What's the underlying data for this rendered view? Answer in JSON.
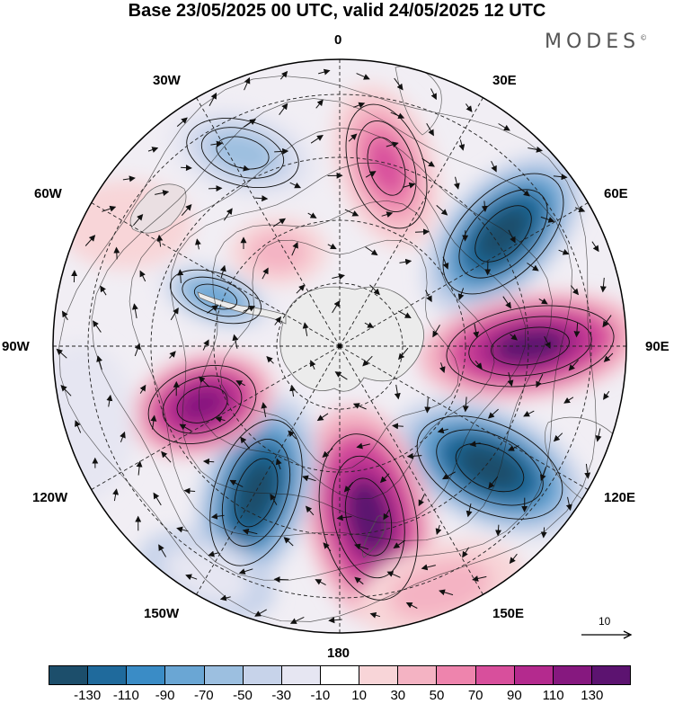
{
  "title": "Base 23/05/2025 00 UTC, valid 24/05/2025 12 UTC",
  "brand": "MODES",
  "brand_mark": "©",
  "longitude_labels": {
    "lon_0": "0",
    "lon_30e": "30E",
    "lon_60e": "60E",
    "lon_90e": "90E",
    "lon_120e": "120E",
    "lon_150e": "150E",
    "lon_180": "180",
    "lon_150w": "150W",
    "lon_120w": "120W",
    "lon_90w": "90W",
    "lon_60w": "60W",
    "lon_30w": "30W"
  },
  "reference_vector": {
    "label": "10"
  },
  "colorbar": {
    "colors": [
      "#1c4e6b",
      "#1f6a9c",
      "#3a8cc6",
      "#6aa6d4",
      "#9cbfe0",
      "#c7d3ea",
      "#e6e6f2",
      "#ffffff",
      "#f8d5d8",
      "#f4b3c3",
      "#ee84ad",
      "#d84f9c",
      "#b42a8e",
      "#86187f",
      "#5c1370"
    ],
    "tick_labels": [
      "-130",
      "-110",
      "-90",
      "-70",
      "-50",
      "-30",
      "-10",
      "10",
      "30",
      "50",
      "70",
      "90",
      "110",
      "130"
    ]
  },
  "map_colors": {
    "ocean_fill": "#eeeeee",
    "land_fill": "#e6e6e6",
    "grid_line": "#222222",
    "arrow": "#111111"
  }
}
